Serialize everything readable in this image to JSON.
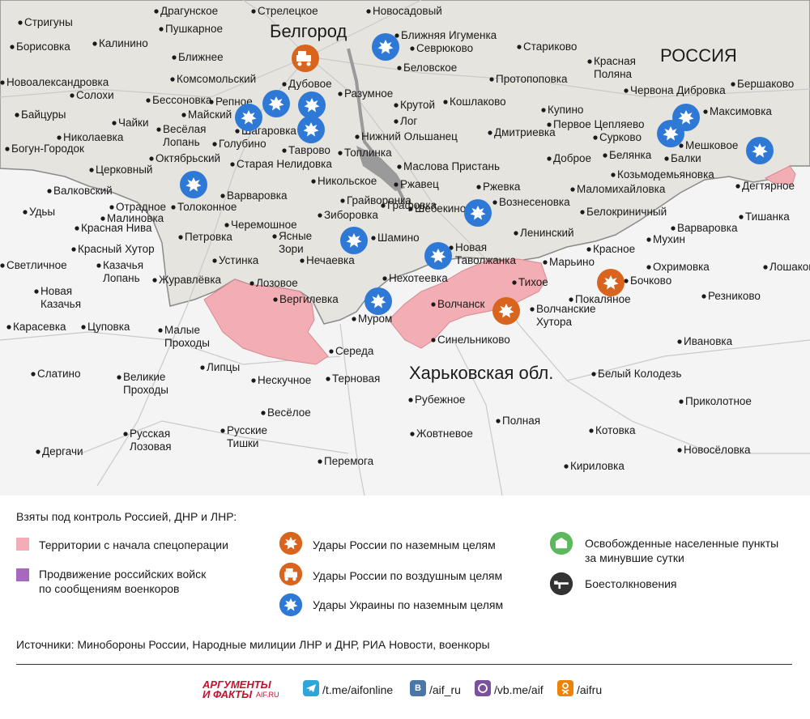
{
  "colors": {
    "russia": "#e6e4df",
    "ukraine": "#f4f4f4",
    "occupied": "#f2aeb4",
    "advance": "#a768bf",
    "ukr_strike": "#2f79d6",
    "rus_strike": "#d8641e",
    "liberated": "#5cb85c",
    "battle": "#333333",
    "river": "#9a9a9a",
    "border": "#8a8a8a",
    "road": "#c8c8c8"
  },
  "map": {
    "big_labels": {
      "city": "Белгород",
      "country": "РОССИЯ",
      "region": "Харьковская обл."
    },
    "places": [
      {
        "name": "Драгунское"
      },
      {
        "name": "Стрелецкое"
      },
      {
        "name": "Новосадовый"
      },
      {
        "name": "Стригуны"
      },
      {
        "name": "Пушкарное"
      },
      {
        "name": "Ближняя Игуменка"
      },
      {
        "name": "Борисовка"
      },
      {
        "name": "Калинино"
      },
      {
        "name": "Севрюково"
      },
      {
        "name": "Стариково"
      },
      {
        "name": "Красная Поляна"
      },
      {
        "name": "Ближнее"
      },
      {
        "name": "Беловское"
      },
      {
        "name": "Комсомольский"
      },
      {
        "name": "Новоалександровка"
      },
      {
        "name": "Дубовое"
      },
      {
        "name": "Протопоповка"
      },
      {
        "name": "Бершаково"
      },
      {
        "name": "Солохи"
      },
      {
        "name": "Разумное"
      },
      {
        "name": "Червона Дибровка"
      },
      {
        "name": "Бессоновка"
      },
      {
        "name": "Репное"
      },
      {
        "name": "Кошлаково"
      },
      {
        "name": "Байцуры"
      },
      {
        "name": "Майский"
      },
      {
        "name": "Крутой"
      },
      {
        "name": "Купино"
      },
      {
        "name": "Максимовка"
      },
      {
        "name": "Чайки"
      },
      {
        "name": "Шагаровка"
      },
      {
        "name": "Лог"
      },
      {
        "name": "Первое Цепляево"
      },
      {
        "name": "Николаевка"
      },
      {
        "name": "Весёлая Лопань"
      },
      {
        "name": "Нижний Ольшанец"
      },
      {
        "name": "Дмитриевка"
      },
      {
        "name": "Сурково"
      },
      {
        "name": "Голубино"
      },
      {
        "name": "Таврово"
      },
      {
        "name": "Мешковое"
      },
      {
        "name": "Богун-Городок"
      },
      {
        "name": "Топлинка"
      },
      {
        "name": "Балки"
      },
      {
        "name": "Белянка"
      },
      {
        "name": "Октябрьский"
      },
      {
        "name": "Доброе"
      },
      {
        "name": "Старая Нелидовка"
      },
      {
        "name": "Маслова Пристань"
      },
      {
        "name": "Церковный"
      },
      {
        "name": "Козьмодемьяновка"
      },
      {
        "name": "Никольское"
      },
      {
        "name": "Дегтярное"
      },
      {
        "name": "Ржавец"
      },
      {
        "name": "Ржевка"
      },
      {
        "name": "Валковский"
      },
      {
        "name": "Маломихайловка"
      },
      {
        "name": "Варваровка"
      },
      {
        "name": "Грайворонка"
      },
      {
        "name": "Отрадное"
      },
      {
        "name": "Графовка"
      },
      {
        "name": "Вознесеновка"
      },
      {
        "name": "Толоконное"
      },
      {
        "name": "Удьы"
      },
      {
        "name": "Шебекино"
      },
      {
        "name": "Малиновка"
      },
      {
        "name": "Белокриничный"
      },
      {
        "name": "Тишанка"
      },
      {
        "name": "Зиборовка"
      },
      {
        "name": "Красная Нива"
      },
      {
        "name": "Черемошное"
      },
      {
        "name": "Ясные Зори"
      },
      {
        "name": "Петровка"
      },
      {
        "name": "Шамино"
      },
      {
        "name": "Варваровка"
      },
      {
        "name": "Ленинский"
      },
      {
        "name": "Мухин"
      },
      {
        "name": "Красный Хутор"
      },
      {
        "name": "Красное"
      },
      {
        "name": "Новая Таволжанка"
      },
      {
        "name": "Устинка"
      },
      {
        "name": "Светличное"
      },
      {
        "name": "Казачья Лопань"
      },
      {
        "name": "Нечаевка"
      },
      {
        "name": "Марьино"
      },
      {
        "name": "Охримовка"
      },
      {
        "name": "Лошаково"
      },
      {
        "name": "Нехотеевка"
      },
      {
        "name": "Журавлёвка"
      },
      {
        "name": "Тихое"
      },
      {
        "name": "Бочково"
      },
      {
        "name": "Лозовое"
      },
      {
        "name": "Новая Казачья"
      },
      {
        "name": "Вергилевка"
      },
      {
        "name": "Покаляное"
      },
      {
        "name": "Резниково"
      },
      {
        "name": "Волчанск"
      },
      {
        "name": "Волчанские Хутора"
      },
      {
        "name": "Муром"
      },
      {
        "name": "Карасевка"
      },
      {
        "name": "Цуповка"
      },
      {
        "name": "Малые Проходы"
      },
      {
        "name": "Синельниково"
      },
      {
        "name": "Ивановка"
      },
      {
        "name": "Середа"
      },
      {
        "name": "Слатино"
      },
      {
        "name": "Липцы"
      },
      {
        "name": "Великие Проходы"
      },
      {
        "name": "Нескучное"
      },
      {
        "name": "Терновая"
      },
      {
        "name": "Белый Колодезь"
      },
      {
        "name": "Рубежное"
      },
      {
        "name": "Приколотное"
      },
      {
        "name": "Весёлое"
      },
      {
        "name": "Полная"
      },
      {
        "name": "Русская Лозовая"
      },
      {
        "name": "Русские Тишки"
      },
      {
        "name": "Жовтневое"
      },
      {
        "name": "Котовка"
      },
      {
        "name": "Дергачи"
      },
      {
        "name": "Новосёловка"
      },
      {
        "name": "Перемога"
      },
      {
        "name": "Кириловка"
      }
    ]
  },
  "legend": {
    "title": "Взяты под контроль Россией, ДНР и ЛНР:",
    "territory": "Территории с начала спецоперации",
    "advance_1": "Продвижение российских войск",
    "advance_2": "по сообщениям военкоров",
    "rus_ground": "Удары России по наземным целям",
    "rus_air": "Удары России по воздушным целям",
    "ukr_ground": "Удары Украины по наземным целям",
    "liberated_1": "Освобожденные населенные пункты",
    "liberated_2": "за минувшие сутки",
    "battle": "Боестолкновения",
    "sources": "Источники: Минобороны России, Народные милиции ЛНР и ДНР, РИА Новости, военкоры",
    "brand_top": "АРГУМЕНТЫ",
    "brand_bottom": "И ФАКТЫ",
    "brand_site": "AIF.RU",
    "social": {
      "telegram": "/t.me/aifonline",
      "vk": "/aif_ru",
      "viber": "/vb.me/aif",
      "ok": "/aifru"
    }
  }
}
